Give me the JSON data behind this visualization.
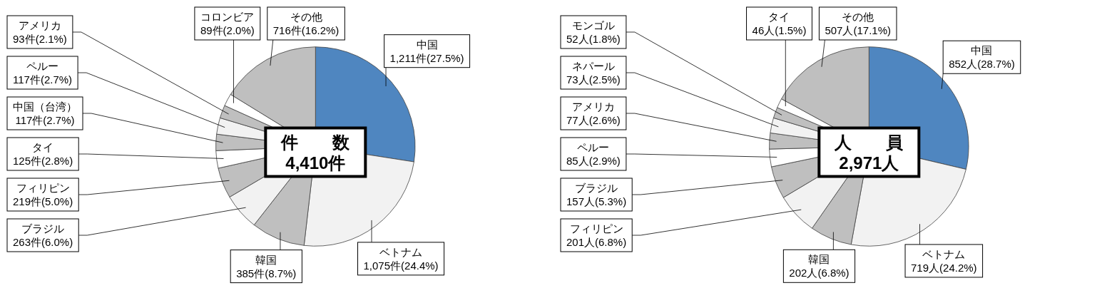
{
  "chart_data": [
    {
      "type": "pie",
      "title": "件　　数",
      "subtitle": "4,410件",
      "categories": [
        "中国",
        "ベトナム",
        "韓国",
        "ブラジル",
        "フィリピン",
        "タイ",
        "中国（台湾）",
        "ペルー",
        "アメリカ",
        "コロンビア",
        "その他"
      ],
      "values": [
        1211,
        1075,
        385,
        263,
        219,
        125,
        117,
        117,
        93,
        89,
        716
      ],
      "value_labels": [
        "1,211件(27.5%)",
        "1,075件(24.4%)",
        "385件(8.7%)",
        "263件(6.0%)",
        "219件(5.0%)",
        "125件(2.8%)",
        "117件(2.7%)",
        "117件(2.7%)",
        "93件(2.1%)",
        "89件(2.0%)",
        "716件(16.2%)"
      ],
      "colors": [
        "#4f86c0",
        "#f2f2f2",
        "#bfbfbf",
        "#f2f2f2",
        "#bfbfbf",
        "#ffffff",
        "#bfbfbf",
        "#f2f2f2",
        "#bfbfbf",
        "#ffffff",
        "#bfbfbf"
      ]
    },
    {
      "type": "pie",
      "title": "人　　員",
      "subtitle": "2,971人",
      "categories": [
        "中国",
        "ベトナム",
        "韓国",
        "フィリピン",
        "ブラジル",
        "ペルー",
        "アメリカ",
        "ネパール",
        "モンゴル",
        "タイ",
        "その他"
      ],
      "values": [
        852,
        719,
        202,
        201,
        157,
        85,
        77,
        73,
        52,
        46,
        507
      ],
      "value_labels": [
        "852人(28.7%)",
        "719人(24.2%)",
        "202人(6.8%)",
        "201人(6.8%)",
        "157人(5.3%)",
        "85人(2.9%)",
        "77人(2.6%)",
        "73人(2.5%)",
        "52人(1.8%)",
        "46人(1.5%)",
        "507人(17.1%)"
      ],
      "colors": [
        "#4f86c0",
        "#f2f2f2",
        "#bfbfbf",
        "#f2f2f2",
        "#bfbfbf",
        "#ffffff",
        "#bfbfbf",
        "#f2f2f2",
        "#bfbfbf",
        "#ffffff",
        "#bfbfbf"
      ]
    }
  ]
}
